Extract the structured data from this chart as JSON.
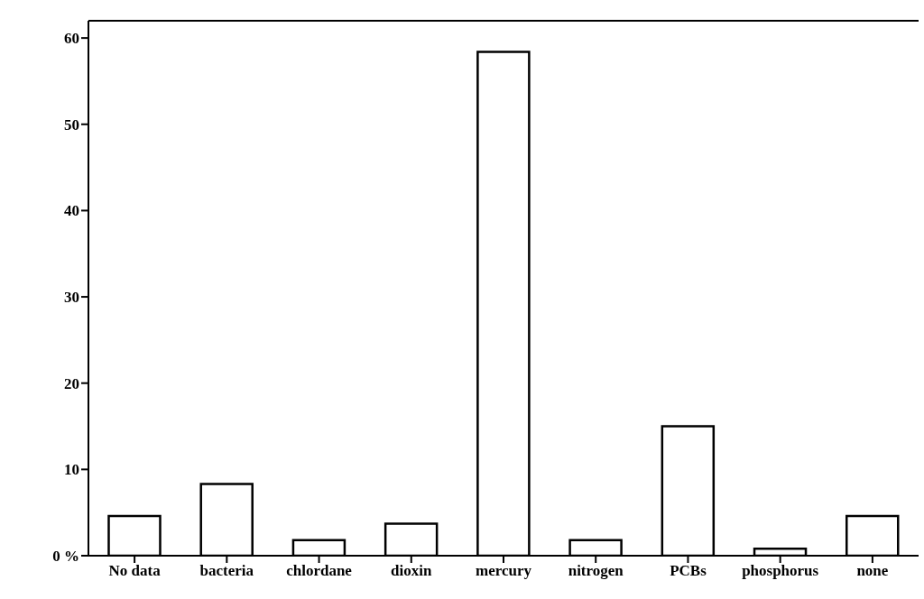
{
  "chart_data": {
    "type": "bar",
    "categories": [
      "No data",
      "bacteria",
      "chlordane",
      "dioxin",
      "mercury",
      "nitrogen",
      "PCBs",
      "phosphorus",
      "none"
    ],
    "values": [
      4.6,
      8.3,
      1.8,
      3.7,
      58.4,
      1.8,
      15.0,
      0.8,
      4.6
    ],
    "color": "#ffffff",
    "ylim": [
      0,
      62
    ],
    "yticks": [
      {
        "value": 0,
        "label": "0 %"
      },
      10,
      20,
      30,
      40,
      50,
      60
    ],
    "grid": false
  }
}
